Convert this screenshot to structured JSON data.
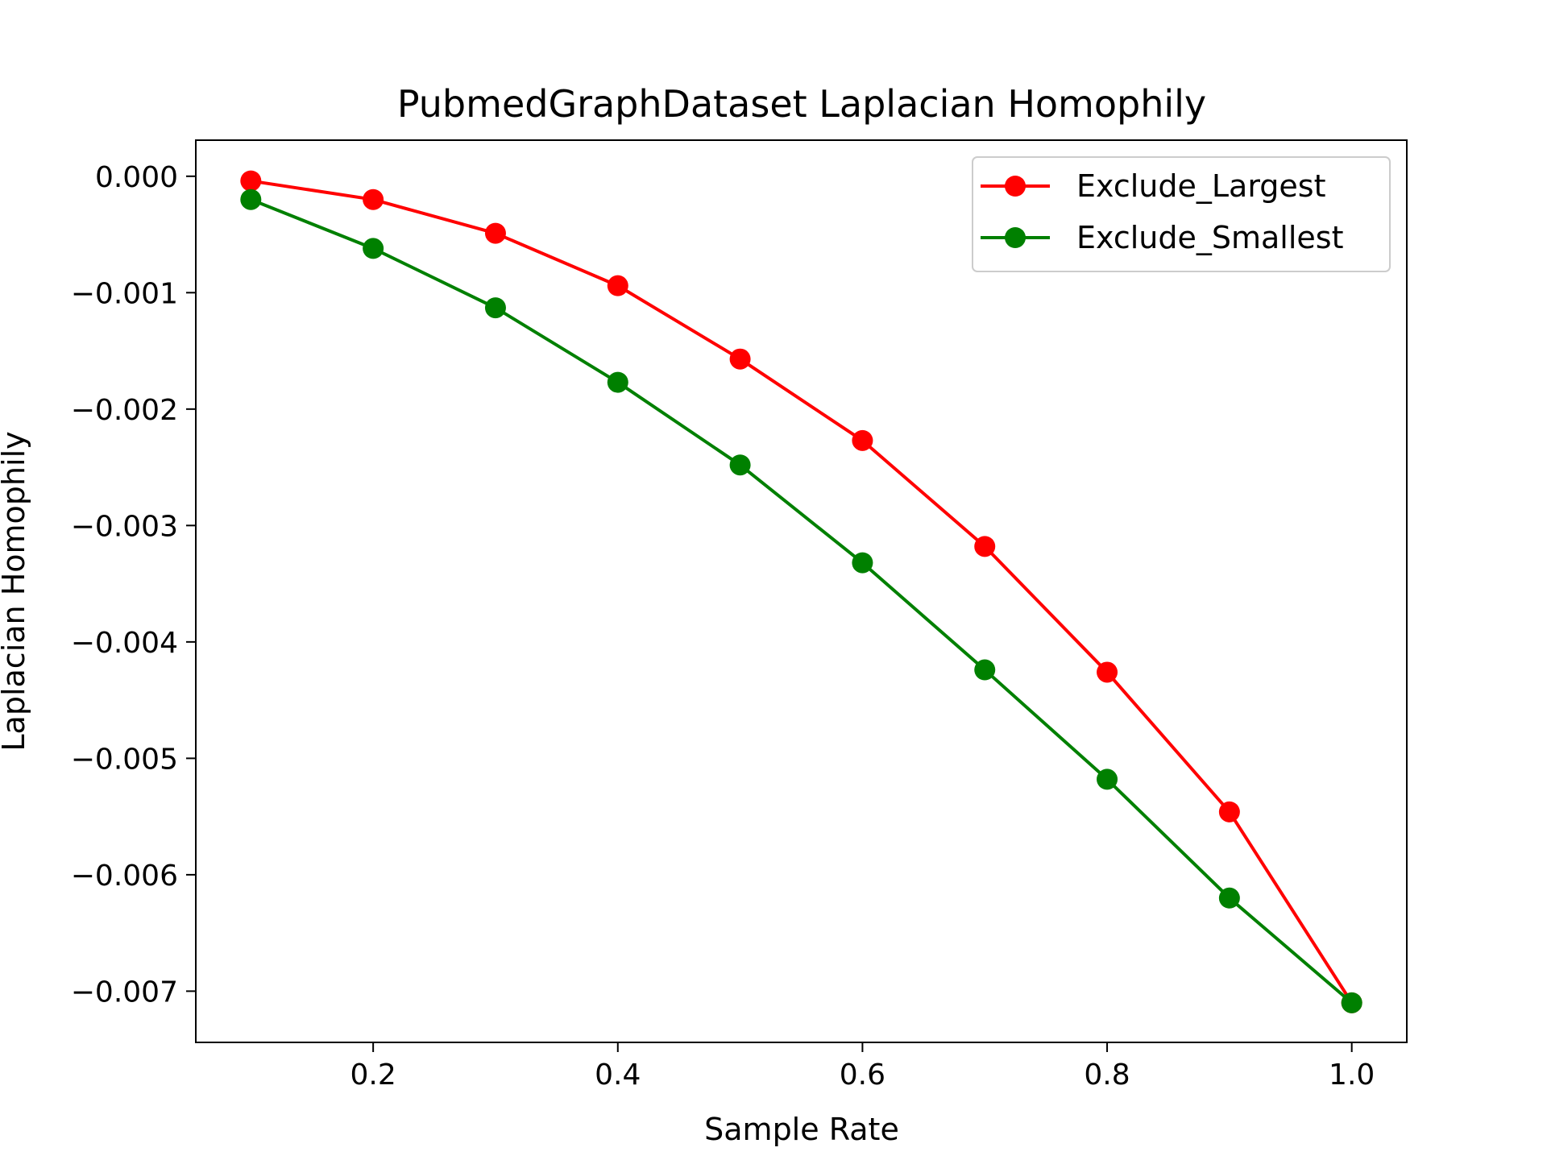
{
  "chart_data": {
    "type": "line",
    "title": "PubmedGraphDataset Laplacian Homophily",
    "xlabel": "Sample Rate",
    "ylabel": "Laplacian Homophily",
    "xlim": [
      0.055,
      1.045
    ],
    "ylim": [
      -0.00744,
      0.00031
    ],
    "x_ticks": [
      0.2,
      0.4,
      0.6,
      0.8,
      1.0
    ],
    "x_tick_labels": [
      "0.2",
      "0.4",
      "0.6",
      "0.8",
      "1.0"
    ],
    "y_ticks": [
      0,
      -0.001,
      -0.002,
      -0.003,
      -0.004,
      -0.005,
      -0.006,
      -0.007
    ],
    "y_tick_labels": [
      "0.000",
      "−0.001",
      "−0.002",
      "−0.003",
      "−0.004",
      "−0.005",
      "−0.006",
      "−0.007"
    ],
    "grid": false,
    "legend_position": "top-right",
    "x": [
      0.1,
      0.2,
      0.3,
      0.4,
      0.5,
      0.6,
      0.7,
      0.8,
      0.9,
      1.0
    ],
    "series": [
      {
        "name": "Exclude_Largest",
        "color": "#ff0000",
        "values": [
          -4e-05,
          -0.0002,
          -0.00049,
          -0.00094,
          -0.00157,
          -0.00227,
          -0.00318,
          -0.00426,
          -0.00546,
          -0.0071
        ]
      },
      {
        "name": "Exclude_Smallest",
        "color": "#008000",
        "values": [
          -0.0002,
          -0.00062,
          -0.00113,
          -0.00177,
          -0.00248,
          -0.00332,
          -0.00424,
          -0.00518,
          -0.0062,
          -0.0071
        ]
      }
    ]
  }
}
